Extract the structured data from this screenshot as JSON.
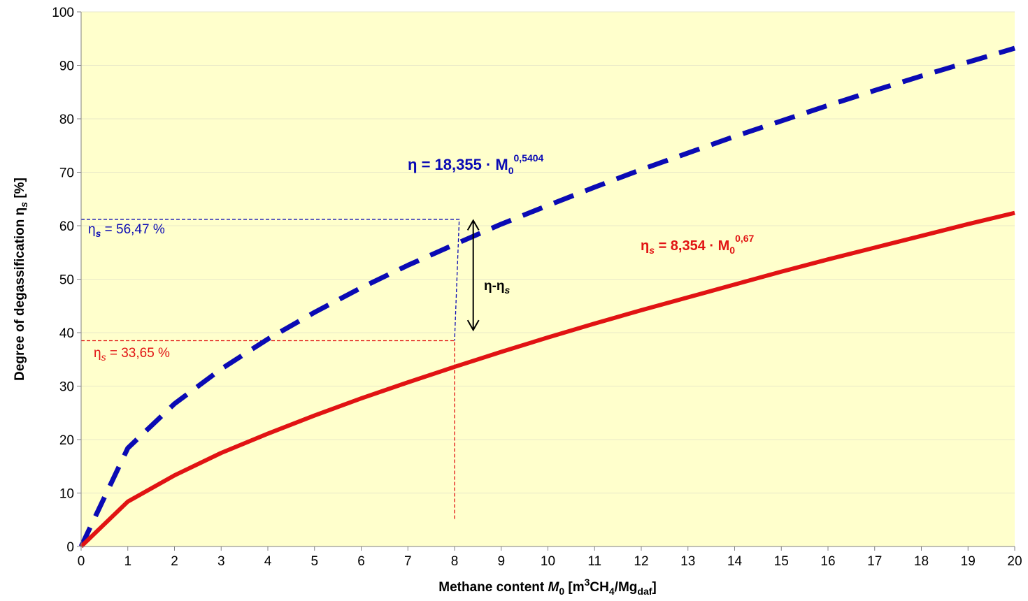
{
  "chart_data": {
    "type": "line",
    "xlabel": {
      "prefix": "Methane content  ",
      "var": "M",
      "var_sub": "0",
      "unit_open": " [m",
      "unit_sup": "3",
      "unit_mid1": "CH",
      "unit_sub1": "4",
      "unit_mid2": "/Mg",
      "unit_sub2": "daf",
      "unit_close": "]"
    },
    "ylabel": {
      "text": "Degree of degassification η",
      "sub": "s",
      "unit": " [%]"
    },
    "xlim": [
      0,
      20
    ],
    "ylim": [
      0,
      100
    ],
    "x_ticks": [
      0,
      1,
      2,
      3,
      4,
      5,
      6,
      7,
      8,
      9,
      10,
      11,
      12,
      13,
      14,
      15,
      16,
      17,
      18,
      19,
      20
    ],
    "y_ticks": [
      0,
      10,
      20,
      30,
      40,
      50,
      60,
      70,
      80,
      90,
      100
    ],
    "grid": true,
    "background": "#ffffcc",
    "series": [
      {
        "color": "#0a0ab4",
        "style": "dashed",
        "x": [
          0,
          1,
          2,
          3,
          4,
          5,
          6,
          7,
          8,
          9,
          10,
          11,
          12,
          13,
          14,
          15,
          16,
          17,
          18,
          19,
          20
        ],
        "values": [
          0,
          18.4,
          26.7,
          33.2,
          38.8,
          43.8,
          48.4,
          52.6,
          56.5,
          60.3,
          63.8,
          67.2,
          70.5,
          73.6,
          76.7,
          79.6,
          82.5,
          85.3,
          88.0,
          90.6,
          93.2
        ]
      },
      {
        "color": "#e11313",
        "style": "solid",
        "x": [
          0,
          1,
          2,
          3,
          4,
          5,
          6,
          7,
          8,
          9,
          10,
          11,
          12,
          13,
          14,
          15,
          16,
          17,
          18,
          19,
          20
        ],
        "values": [
          0,
          8.4,
          13.3,
          17.5,
          21.1,
          24.5,
          27.7,
          30.7,
          33.6,
          36.4,
          39.1,
          41.7,
          44.2,
          46.6,
          49.0,
          51.4,
          53.7,
          55.9,
          58.1,
          60.3,
          62.4
        ]
      }
    ],
    "annotations": {
      "blue_equation": {
        "eta": "η",
        "rest": " = 18,355 · M",
        "sub": "0",
        "sup": "0,5404"
      },
      "red_equation": {
        "eta": "η",
        "eta_sub": "s",
        "rest": " = 8,354 · M",
        "sub": "0",
        "sup": "0,67"
      },
      "blue_value": {
        "eta": "η",
        "eta_sub": "s",
        "rest": " = 56,47 %"
      },
      "red_value": {
        "eta": "η",
        "eta_sub": "s",
        "rest": " = 33,65 %"
      },
      "difference": {
        "text": "η-η",
        "sub": "s"
      },
      "guide_x": 8,
      "guide_blue_y": 61.2,
      "guide_red_y": 38.5,
      "arrow_y_top": 61,
      "arrow_y_bottom": 40.5,
      "arrow_x": 8.4
    }
  }
}
